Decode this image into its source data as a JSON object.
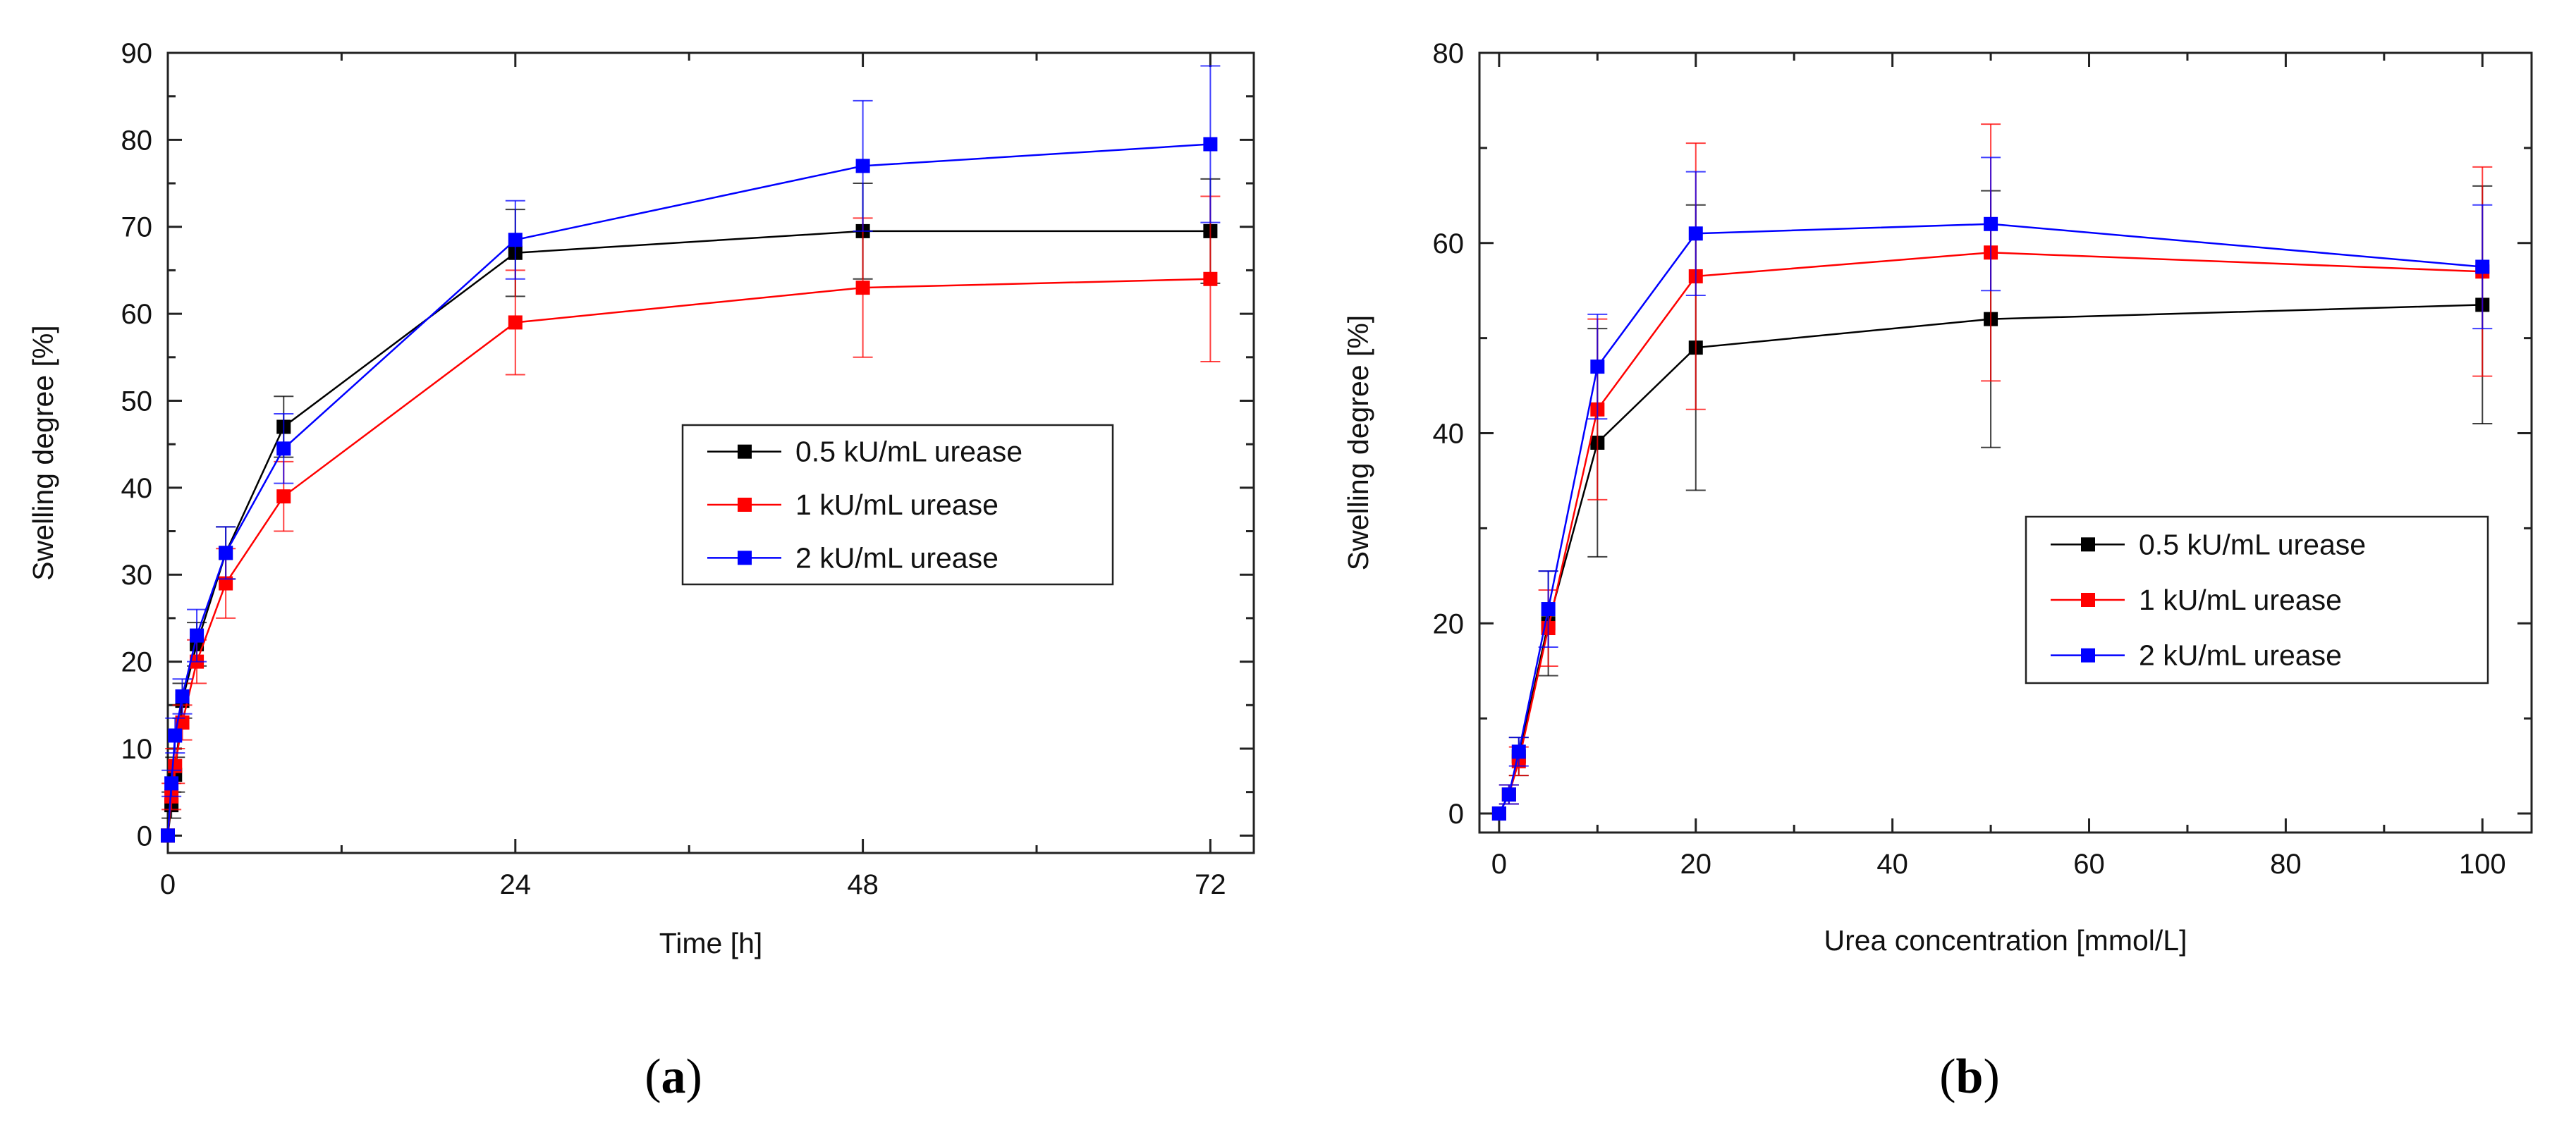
{
  "chart_data": [
    {
      "type": "line",
      "panel_label_open": "(",
      "panel_label_letter": "a",
      "panel_label_close": ")",
      "xlabel": "Time [h]",
      "ylabel": "Swelling degree [%]",
      "xlim": [
        0,
        75
      ],
      "ylim": [
        -2,
        90
      ],
      "xticks": [
        0,
        24,
        48,
        72
      ],
      "xminor": [
        12,
        36,
        60
      ],
      "yticks": [
        0,
        10,
        20,
        30,
        40,
        50,
        60,
        70,
        80,
        90
      ],
      "yminor": [
        5,
        15,
        25,
        35,
        45,
        55,
        65,
        75,
        85
      ],
      "grid": false,
      "legend_position": "center-right",
      "series": [
        {
          "name": "0.5 kU/mL urease",
          "color": "#000000",
          "x": [
            0,
            0.25,
            0.5,
            1,
            2,
            4,
            8,
            24,
            48,
            72
          ],
          "y": [
            0,
            3.5,
            7,
            15.5,
            22,
            32.5,
            47,
            67,
            69.5,
            69.5
          ],
          "err": [
            0,
            1.5,
            2,
            2,
            2.5,
            3,
            3.5,
            5,
            5.5,
            6
          ]
        },
        {
          "name": "1 kU/mL urease",
          "color": "#ff0000",
          "x": [
            0,
            0.25,
            0.5,
            1,
            2,
            4,
            8,
            24,
            48,
            72
          ],
          "y": [
            0,
            4.5,
            8,
            13,
            20,
            29,
            39,
            59,
            63,
            64
          ],
          "err": [
            0,
            1.5,
            2,
            2,
            2.5,
            4,
            4,
            6,
            8,
            9.5
          ]
        },
        {
          "name": "2 kU/mL urease",
          "color": "#0000ff",
          "x": [
            0,
            0.25,
            0.5,
            1,
            2,
            4,
            8,
            24,
            48,
            72
          ],
          "y": [
            0,
            6,
            11.5,
            16,
            23,
            32.5,
            44.5,
            68.5,
            77,
            79.5
          ],
          "err": [
            0,
            1.5,
            2,
            2,
            3,
            3,
            4,
            4.5,
            7.5,
            9
          ]
        }
      ]
    },
    {
      "type": "line",
      "panel_label_open": "(",
      "panel_label_letter": "b",
      "panel_label_close": ")",
      "xlabel": "Urea concentration [mmol/L]",
      "ylabel": "Swelling degree [%]",
      "xlim": [
        -2,
        105
      ],
      "ylim": [
        -2,
        80
      ],
      "xticks": [
        0,
        20,
        40,
        60,
        80,
        100
      ],
      "xminor": [
        10,
        30,
        50,
        70,
        90
      ],
      "yticks": [
        0,
        20,
        40,
        60,
        80
      ],
      "yminor": [
        10,
        30,
        50,
        70
      ],
      "grid": false,
      "legend_position": "lower-right",
      "series": [
        {
          "name": "0.5 kU/mL urease",
          "color": "#000000",
          "x": [
            0,
            1,
            2,
            5,
            10,
            20,
            50,
            100
          ],
          "y": [
            0,
            2,
            6,
            20,
            39,
            49,
            52,
            53.5
          ],
          "err": [
            0,
            1,
            2,
            5.5,
            12,
            15,
            13.5,
            12.5
          ]
        },
        {
          "name": "1 kU/mL urease",
          "color": "#ff0000",
          "x": [
            0,
            1,
            2,
            5,
            10,
            20,
            50,
            100
          ],
          "y": [
            0,
            2,
            5.5,
            19.5,
            42.5,
            56.5,
            59,
            57
          ],
          "err": [
            0,
            1,
            1.5,
            4,
            9.5,
            14,
            13.5,
            11
          ]
        },
        {
          "name": "2 kU/mL urease",
          "color": "#0000ff",
          "x": [
            0,
            1,
            2,
            5,
            10,
            20,
            50,
            100
          ],
          "y": [
            0,
            2,
            6.5,
            21.5,
            47,
            61,
            62,
            57.5
          ],
          "err": [
            0,
            1,
            1.5,
            4,
            5.5,
            6.5,
            7,
            6.5
          ]
        }
      ]
    }
  ]
}
